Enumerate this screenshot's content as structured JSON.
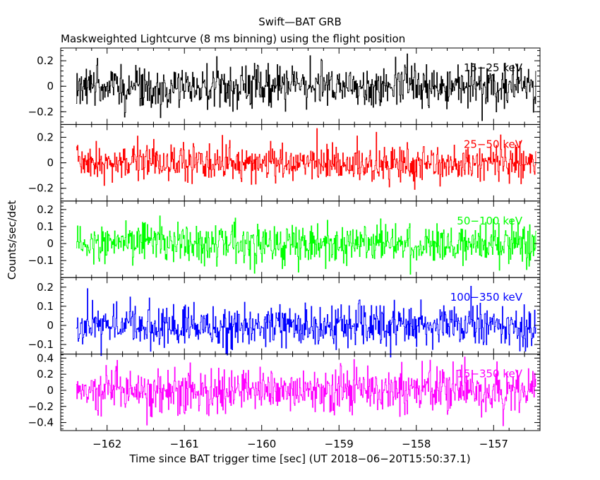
{
  "chart_data": {
    "type": "line",
    "title": "Swift—BAT GRB",
    "subtitle": "Maskweighted Lightcurve (8 ms binning) using the flight position",
    "xlabel": "Time since BAT trigger time [sec] (UT 2018−06−20T15:50:37.1)",
    "ylabel": "Counts/sec/det",
    "xlim": [
      -162.6,
      -156.4
    ],
    "x_range": [
      -162.4,
      -156.45
    ],
    "bin_width": 0.008,
    "x_ticks": [
      -162,
      -161,
      -160,
      -159,
      -158,
      -157
    ],
    "x_tick_labels": [
      "−162",
      "−161",
      "−160",
      "−159",
      "−158",
      "−157"
    ],
    "panels": [
      {
        "label": "15−25 keV",
        "color": "#000000",
        "ylim": [
          -0.3,
          0.3
        ],
        "ticks": [
          -0.2,
          0,
          0.2
        ],
        "tick_labels": [
          "−0.2",
          "0",
          "0.2"
        ],
        "noise_sd": 0.085,
        "clip": 0.29
      },
      {
        "label": "25−50 keV",
        "color": "#ff0000",
        "ylim": [
          -0.3,
          0.3
        ],
        "ticks": [
          -0.2,
          0,
          0.2
        ],
        "tick_labels": [
          "−0.2",
          "0",
          "0.2"
        ],
        "noise_sd": 0.075,
        "clip": 0.29
      },
      {
        "label": "50−100 keV",
        "color": "#00ff00",
        "ylim": [
          -0.2,
          0.25
        ],
        "ticks": [
          -0.1,
          0,
          0.1,
          0.2
        ],
        "tick_labels": [
          "−0.1",
          "0",
          "0.1",
          "0.2"
        ],
        "noise_sd": 0.06,
        "clip": 0.24
      },
      {
        "label": "100−350 keV",
        "color": "#0000ff",
        "ylim": [
          -0.15,
          0.25
        ],
        "ticks": [
          -0.1,
          0,
          0.1,
          0.2
        ],
        "tick_labels": [
          "−0.1",
          "0",
          "0.1",
          "0.2"
        ],
        "noise_sd": 0.055,
        "clip": 0.24
      },
      {
        "label": "15−350 keV",
        "color": "#ff00ff",
        "ylim": [
          -0.5,
          0.45
        ],
        "ticks": [
          -0.4,
          -0.2,
          0,
          0.2,
          0.4
        ],
        "tick_labels": [
          "−0.4",
          "−0.2",
          "0",
          "0.2",
          "0.4"
        ],
        "noise_sd": 0.14,
        "clip": 0.44
      }
    ]
  }
}
